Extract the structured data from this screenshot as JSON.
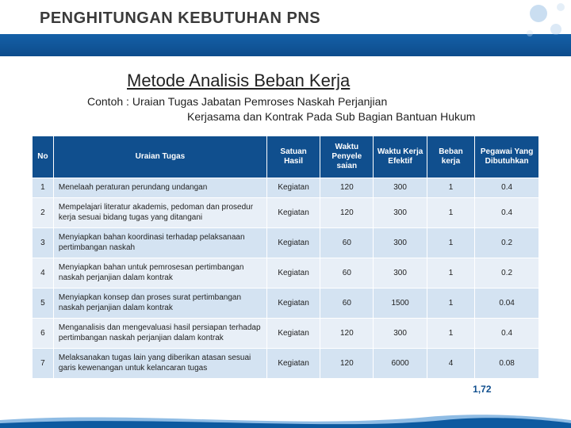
{
  "pageTitle": "PENGHITUNGAN KEBUTUHAN PNS",
  "subtitle": "Metode Analisis Beban Kerja",
  "example": {
    "label": "Contoh :",
    "line1": "Uraian Tugas Jabatan Pemroses Naskah Perjanjian",
    "line2": "Kerjasama dan Kontrak Pada Sub Bagian Bantuan Hukum"
  },
  "table": {
    "headers": {
      "no": "No",
      "uraian": "Uraian Tugas",
      "satuan": "Satuan Hasil",
      "waktuPenyelesaian": "Waktu Penyele saian",
      "waktuKerjaEfektif": "Waktu Kerja Efektif",
      "bebanKerja": "Beban kerja",
      "pegawai": "Pegawai Yang Dibutuhkan"
    },
    "rows": [
      {
        "no": "1",
        "uraian": "Menelaah peraturan perundang undangan",
        "satuan": "Kegiatan",
        "wp": "120",
        "wke": "300",
        "bk": "1",
        "peg": "0.4"
      },
      {
        "no": "2",
        "uraian": "Mempelajari literatur akademis, pedoman dan prosedur kerja sesuai bidang tugas yang ditangani",
        "satuan": "Kegiatan",
        "wp": "120",
        "wke": "300",
        "bk": "1",
        "peg": "0.4"
      },
      {
        "no": "3",
        "uraian": "Menyiapkan bahan koordinasi terhadap pelaksanaan pertimbangan naskah",
        "satuan": "Kegiatan",
        "wp": "60",
        "wke": "300",
        "bk": "1",
        "peg": "0.2"
      },
      {
        "no": "4",
        "uraian": "Menyiapkan bahan untuk pemrosesan pertimbangan naskah perjanjian dalam kontrak",
        "satuan": "Kegiatan",
        "wp": "60",
        "wke": "300",
        "bk": "1",
        "peg": "0.2"
      },
      {
        "no": "5",
        "uraian": "Menyiapkan konsep dan proses surat pertimbangan naskah perjanjian dalam kontrak",
        "satuan": "Kegiatan",
        "wp": "60",
        "wke": "1500",
        "bk": "1",
        "peg": "0.04"
      },
      {
        "no": "6",
        "uraian": "Menganalisis dan mengevaluasi hasil persiapan terhadap pertimbangan naskah perjanjian dalam kontrak",
        "satuan": "Kegiatan",
        "wp": "120",
        "wke": "300",
        "bk": "1",
        "peg": "0.4"
      },
      {
        "no": "7",
        "uraian": "Melaksanakan tugas lain yang diberikan atasan sesuai garis kewenangan untuk kelancaran tugas",
        "satuan": "Kegiatan",
        "wp": "120",
        "wke": "6000",
        "bk": "4",
        "peg": "0.08"
      }
    ],
    "total": "1,72"
  },
  "colors": {
    "headerBg": "#104f8e",
    "rowA": "#d4e3f2",
    "rowB": "#e8eff7",
    "bandTop": "#1560a8",
    "bandBottom": "#0d4c8c",
    "waveLight": "#8fbce4",
    "waveDark": "#0d5aa0"
  }
}
